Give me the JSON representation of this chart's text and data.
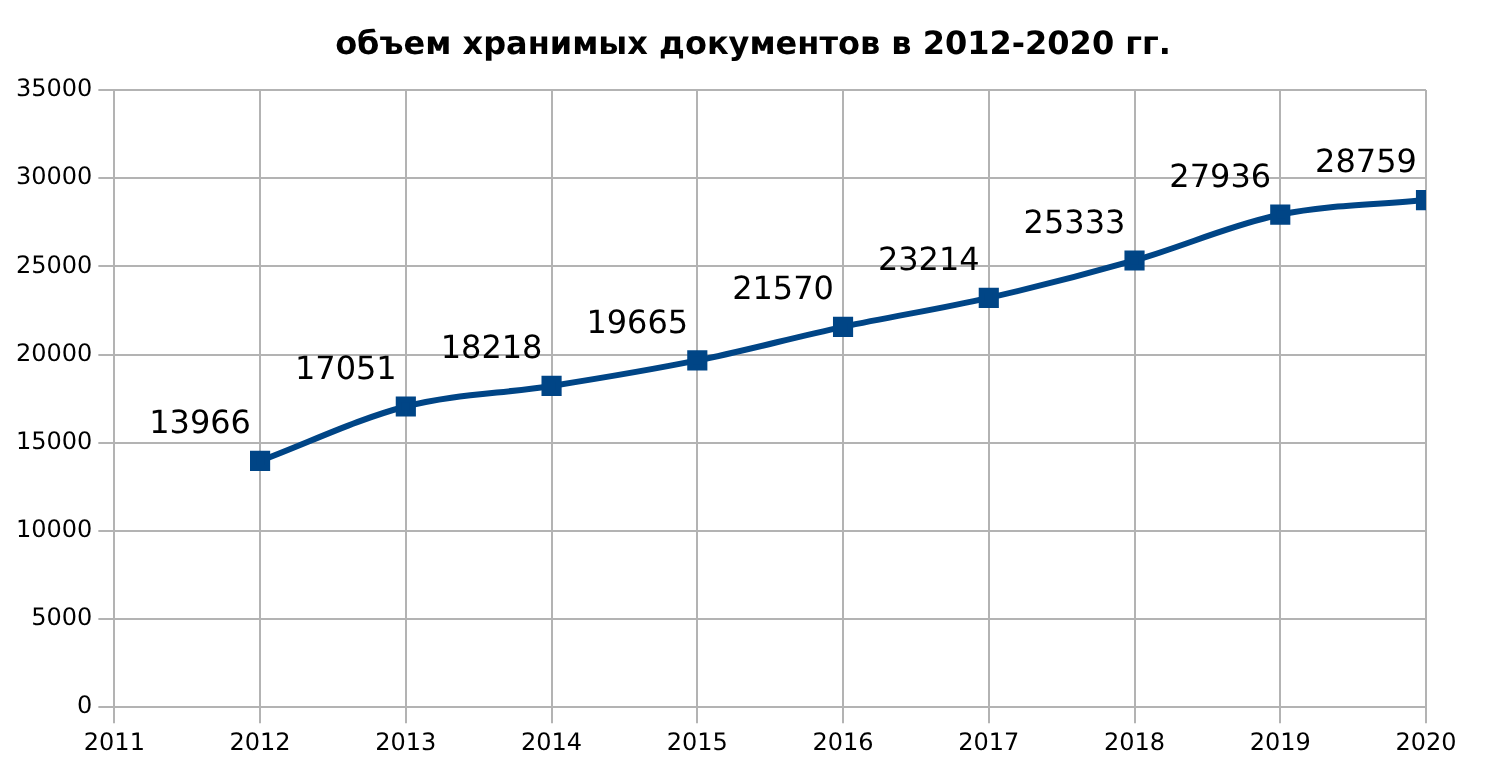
{
  "chart_data": {
    "type": "line",
    "title": "объем хранимых документов в 2012-2020 гг.",
    "x": [
      2012,
      2013,
      2014,
      2015,
      2016,
      2017,
      2018,
      2019,
      2020
    ],
    "series": [
      {
        "color": "#004586",
        "values": [
          13966,
          17051,
          18218,
          19665,
          21570,
          23214,
          25333,
          27936,
          28759
        ]
      }
    ],
    "xlim": [
      2011,
      2020
    ],
    "xticks": [
      2011,
      2012,
      2013,
      2014,
      2015,
      2016,
      2017,
      2018,
      2019,
      2020
    ],
    "ylim": [
      0,
      35000
    ],
    "yticks": [
      0,
      5000,
      10000,
      15000,
      20000,
      25000,
      30000,
      35000
    ],
    "grid": true,
    "legend": false,
    "marker": "square",
    "line_style": "solid",
    "data_labels": true
  }
}
